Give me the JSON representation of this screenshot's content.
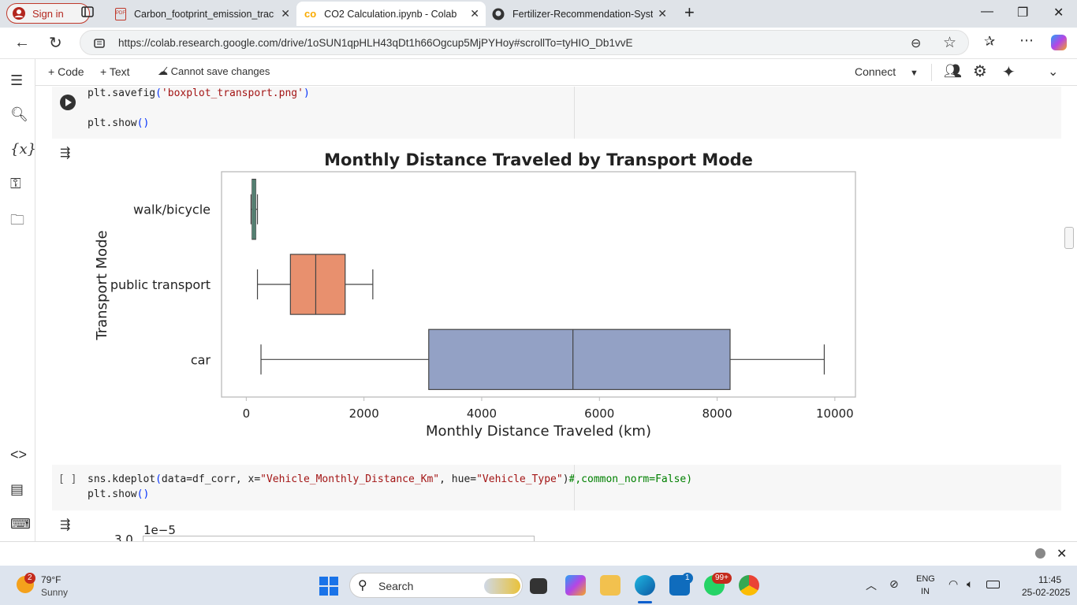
{
  "browser": {
    "signin_label": "Sign in",
    "tabs": [
      {
        "title": "Carbon_footprint_emission_tracki",
        "icon": "pdf-icon"
      },
      {
        "title": "CO2 Calculation.ipynb - Colab",
        "icon": "colab-icon"
      },
      {
        "title": "Fertilizer-Recommendation-Syste",
        "icon": "github-icon"
      }
    ],
    "url": "https://colab.research.google.com/drive/1oSUN1qpHLH43qDt1h66Ogcup5MjPYHoy#scrollTo=tyHIO_Db1vvE"
  },
  "colab": {
    "add_code": "Code",
    "add_text": "Text",
    "cannot_save": "Cannot save changes",
    "connect": "Connect"
  },
  "cells": {
    "cell1_line1": "plt.savefig('boxplot_transport.png')",
    "cell1_line2": "plt.show()",
    "cell2_bracket": "[ ]",
    "cell2_line1": "sns.kdeplot(data=df_corr, x=\"Vehicle_Monthly_Distance_Km\", hue=\"Vehicle_Type\")#,common_norm=False)",
    "cell2_line2": "plt.show()",
    "next_plot_scale": "1e−5",
    "next_plot_ytick": "3.0"
  },
  "chart_data": {
    "type": "box",
    "orientation": "horizontal",
    "title": "Monthly Distance Traveled by Transport Mode",
    "xlabel": "Monthly Distance Traveled (km)",
    "ylabel": "Transport Mode",
    "xlim": [
      -420,
      10350
    ],
    "xticks": [
      0,
      2000,
      4000,
      6000,
      8000,
      10000
    ],
    "categories": [
      "walk/bicycle",
      "public transport",
      "car"
    ],
    "boxes": [
      {
        "category": "walk/bicycle",
        "whisker_low": 80,
        "q1": 100,
        "median": 130,
        "q3": 160,
        "whisker_high": 190,
        "color": "#66c2a5"
      },
      {
        "category": "public transport",
        "whisker_low": 190,
        "q1": 750,
        "median": 1180,
        "q3": 1680,
        "whisker_high": 2150,
        "color": "#e8906e"
      },
      {
        "category": "car",
        "whisker_low": 250,
        "q1": 3100,
        "median": 5550,
        "q3": 8220,
        "whisker_high": 9820,
        "color": "#93a1c5"
      }
    ]
  },
  "taskbar": {
    "weather_temp": "79°F",
    "weather_desc": "Sunny",
    "weather_badge": "2",
    "search_label": "Search",
    "lang": "ENG",
    "region": "IN",
    "time": "11:45",
    "date": "25-02-2025",
    "store_badge": "1",
    "whatsapp_badge": "99+"
  }
}
